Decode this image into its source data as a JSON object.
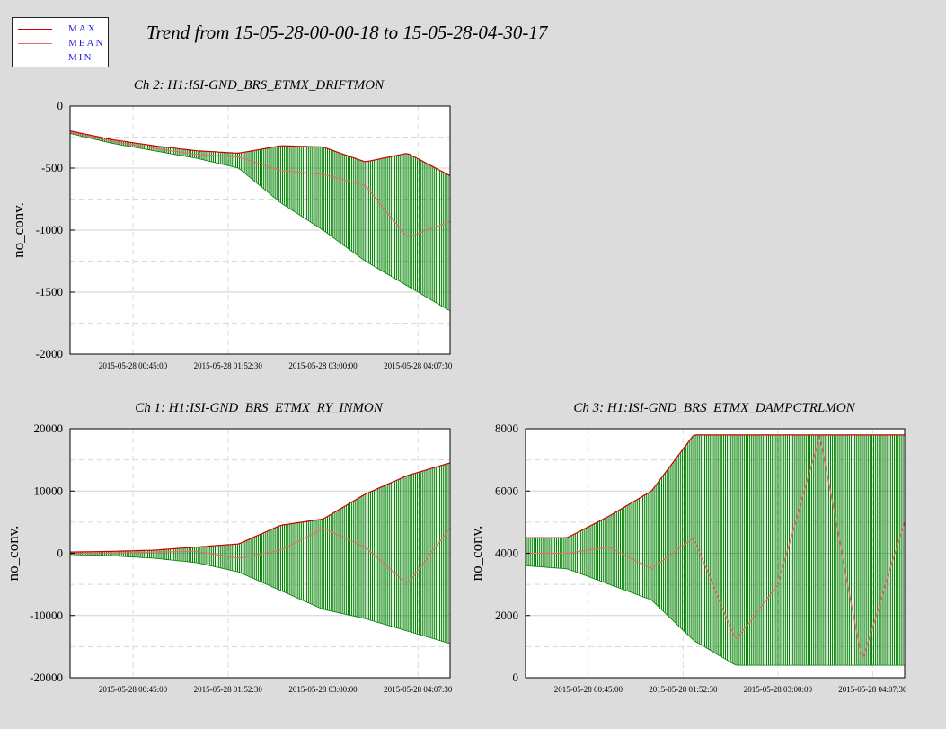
{
  "title": "Trend from 15-05-28-00-00-18 to 15-05-28-04-30-17",
  "legend": [
    {
      "label": "MAX",
      "color": "#cc0000"
    },
    {
      "label": "MEAN",
      "color": "#e07070"
    },
    {
      "label": "MIN",
      "color": "#008000"
    }
  ],
  "chart_data": [
    {
      "type": "line",
      "title": "Ch 2: H1:ISI-GND_BRS_ETMX_DRIFTMON",
      "ylabel": "no_conv.",
      "xlabel": "",
      "xlim": [
        "2015-05-28 00:00:18",
        "2015-05-28 04:30:17"
      ],
      "ylim": [
        -2000,
        0
      ],
      "yticks": [
        0,
        -500,
        -1000,
        -1500,
        -2000
      ],
      "xtick_labels": [
        "2015-05-28 00:45:00",
        "2015-05-28 01:52:30",
        "2015-05-28 03:00:00",
        "2015-05-28 04:07:30"
      ],
      "x": [
        "00:00",
        "00:30",
        "01:00",
        "01:30",
        "02:00",
        "02:30",
        "03:00",
        "03:30",
        "04:00",
        "04:30"
      ],
      "series": [
        {
          "name": "MAX",
          "values": [
            -200,
            -270,
            -320,
            -360,
            -380,
            -320,
            -330,
            -450,
            -380,
            -560
          ]
        },
        {
          "name": "MEAN",
          "values": [
            -210,
            -285,
            -340,
            -390,
            -410,
            -520,
            -550,
            -640,
            -1060,
            -930
          ]
        },
        {
          "name": "MIN",
          "values": [
            -220,
            -300,
            -360,
            -420,
            -500,
            -780,
            -1000,
            -1250,
            -1450,
            -1650
          ]
        }
      ],
      "grid": true
    },
    {
      "type": "line",
      "title": "Ch 1: H1:ISI-GND_BRS_ETMX_RY_INMON",
      "ylabel": "no_conv.",
      "xlabel": "",
      "xlim": [
        "2015-05-28 00:00:18",
        "2015-05-28 04:30:17"
      ],
      "ylim": [
        -20000,
        20000
      ],
      "yticks": [
        20000,
        10000,
        0,
        -10000,
        -20000
      ],
      "xtick_labels": [
        "2015-05-28 00:45:00",
        "2015-05-28 01:52:30",
        "2015-05-28 03:00:00",
        "2015-05-28 04:07:30"
      ],
      "x": [
        "00:00",
        "00:30",
        "01:00",
        "01:30",
        "02:00",
        "02:30",
        "03:00",
        "03:30",
        "04:00",
        "04:30"
      ],
      "series": [
        {
          "name": "MAX",
          "values": [
            200,
            300,
            500,
            1000,
            1500,
            4500,
            5500,
            9500,
            12500,
            14500
          ]
        },
        {
          "name": "MEAN",
          "values": [
            0,
            0,
            200,
            300,
            -800,
            500,
            4000,
            1000,
            -5000,
            4000
          ]
        },
        {
          "name": "MIN",
          "values": [
            -200,
            -400,
            -800,
            -1500,
            -3000,
            -6000,
            -9000,
            -10500,
            -12500,
            -14500
          ]
        }
      ],
      "grid": true
    },
    {
      "type": "line",
      "title": "Ch 3: H1:ISI-GND_BRS_ETMX_DAMPCTRLMON",
      "ylabel": "no_conv.",
      "xlabel": "",
      "xlim": [
        "2015-05-28 00:00:18",
        "2015-05-28 04:30:17"
      ],
      "ylim": [
        0,
        8000
      ],
      "yticks": [
        8000,
        6000,
        4000,
        2000,
        0
      ],
      "xtick_labels": [
        "2015-05-28 00:45:00",
        "2015-05-28 01:52:30",
        "2015-05-28 03:00:00",
        "2015-05-28 04:07:30"
      ],
      "x": [
        "00:00",
        "00:30",
        "01:00",
        "01:30",
        "02:00",
        "02:30",
        "03:00",
        "03:30",
        "04:00",
        "04:30"
      ],
      "series": [
        {
          "name": "MAX",
          "values": [
            4500,
            4500,
            5200,
            6000,
            7800,
            7800,
            7800,
            7800,
            7800,
            7800
          ]
        },
        {
          "name": "MEAN",
          "values": [
            4000,
            4000,
            4200,
            3500,
            4500,
            1200,
            3000,
            7800,
            500,
            5000
          ]
        },
        {
          "name": "MIN",
          "values": [
            3600,
            3500,
            3000,
            2500,
            1200,
            400,
            400,
            400,
            400,
            400
          ]
        }
      ],
      "grid": true
    }
  ]
}
